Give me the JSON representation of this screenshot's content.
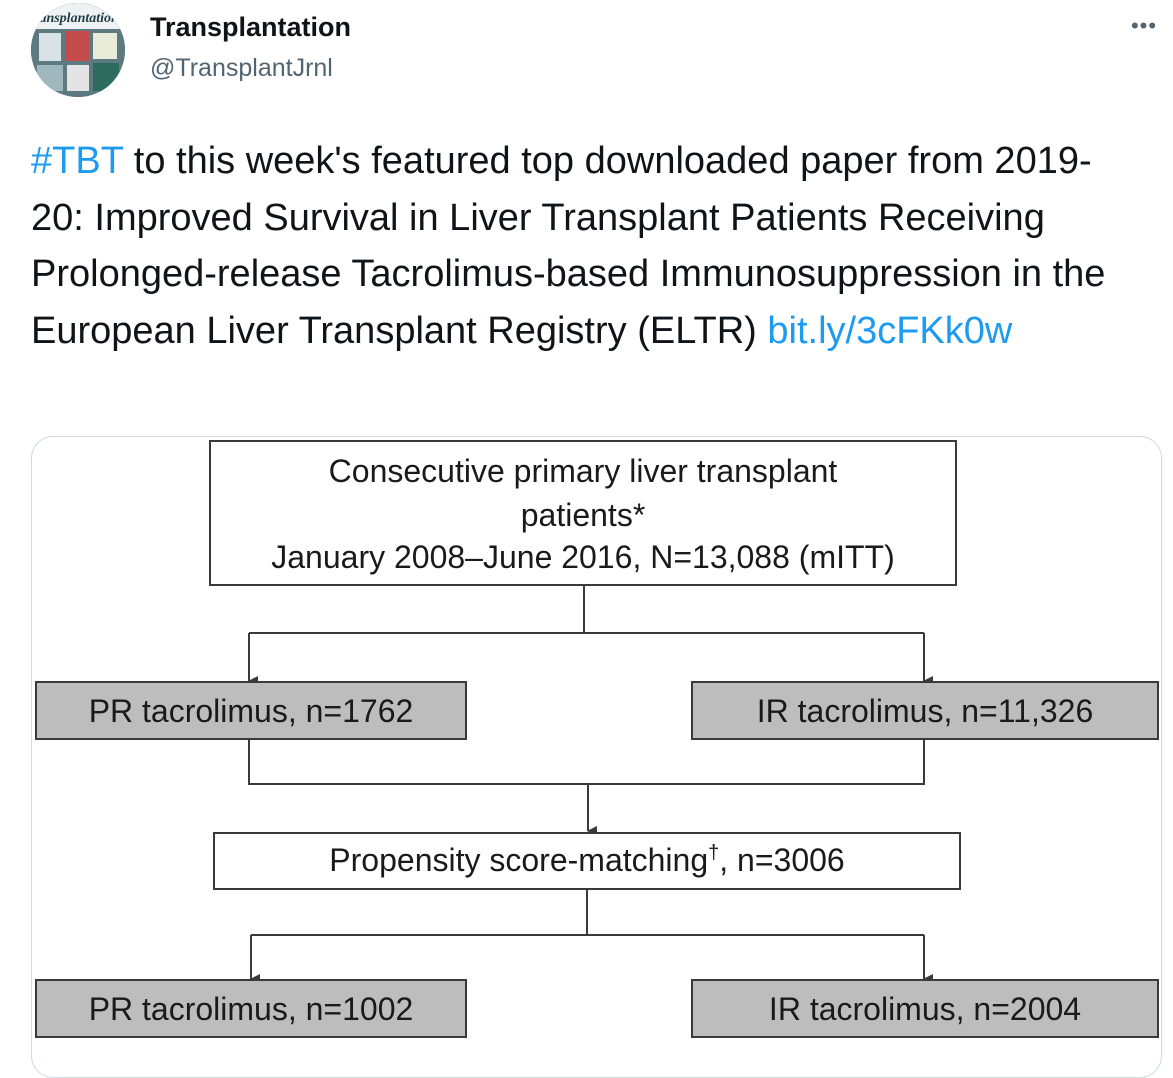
{
  "account": {
    "avatar_text": "ransplantation",
    "name": "Transplantation",
    "handle": "@TransplantJrnl",
    "more_icon": "more-horizontal-icon"
  },
  "tweet": {
    "hashtag": "#TBT",
    "body": " to this week's featured top downloaded paper from 2019-20: Improved Survival in Liver Transplant Patients Receiving Prolonged-release Tacrolimus-based Immunosuppression in the European Liver Transplant Registry (ELTR) ",
    "link": "bit.ly/3cFKk0w"
  },
  "flowchart": {
    "top_box": {
      "line1": "Consecutive primary liver transplant",
      "line2": "patients*",
      "line3": "January 2008–June 2016, N=13,088 (mITT)"
    },
    "left_box_1": "PR tacrolimus, n=1762",
    "right_box_1": "IR tacrolimus, n=11,326",
    "middle_box": {
      "text": "Propensity score-matching",
      "superscript": "†",
      "suffix": ", n=3006"
    },
    "left_box_2": "PR tacrolimus, n=1002",
    "right_box_2": "IR tacrolimus, n=2004",
    "colors": {
      "shaded_box": "#bdbdbd",
      "line": "#3a3a3a"
    }
  }
}
